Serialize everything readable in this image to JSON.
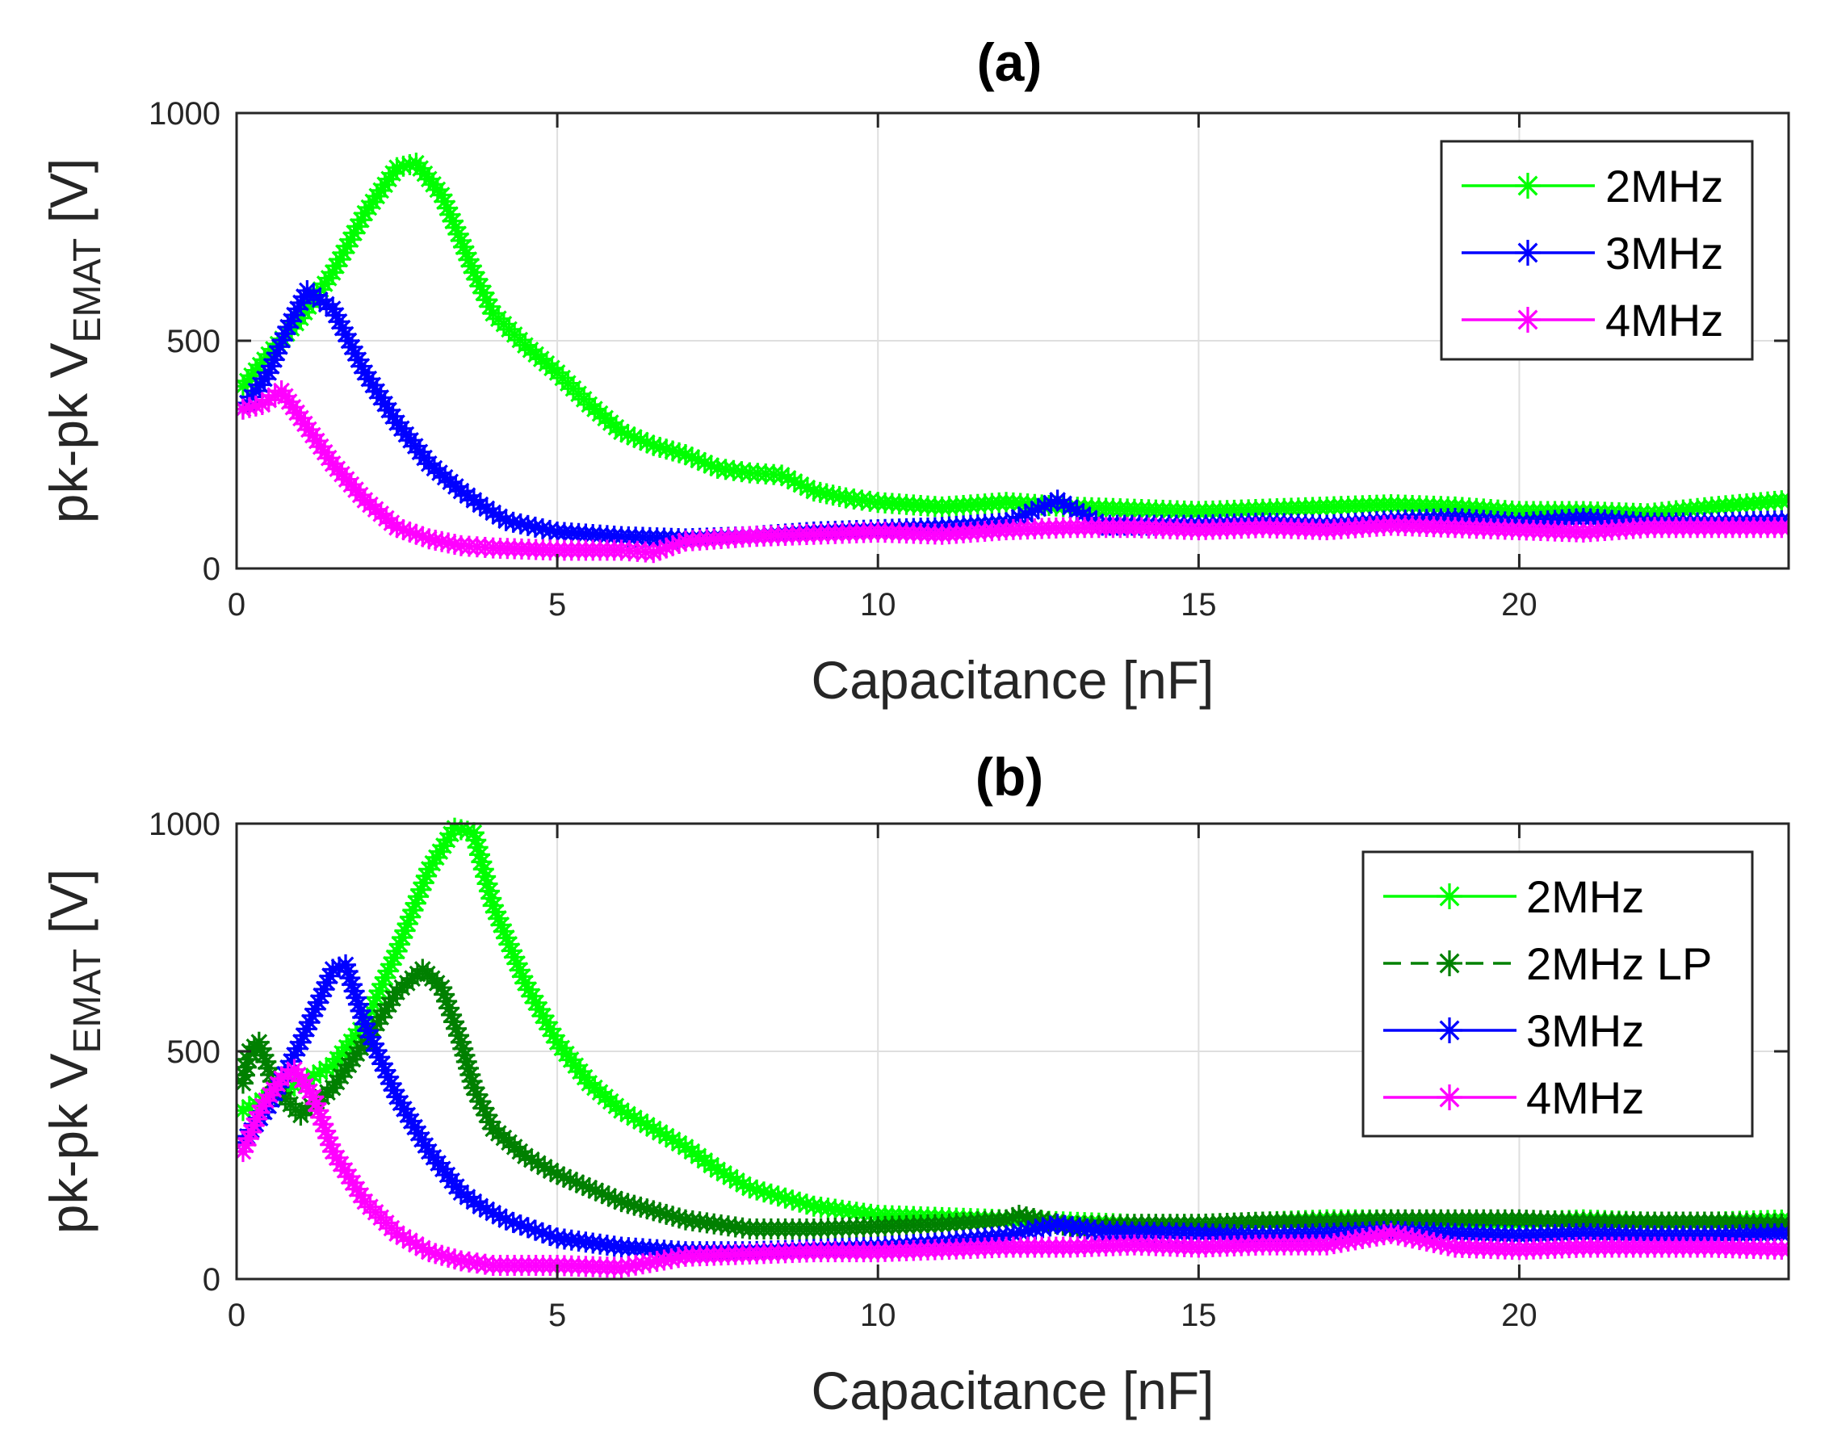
{
  "chart_data": [
    {
      "type": "line",
      "title": "(a)",
      "xlabel": "Capacitance [nF]",
      "ylabel": {
        "main": "pk-pk V",
        "sub": "EMAT",
        "unit": " [V]"
      },
      "xlim": [
        0,
        24.2
      ],
      "ylim": [
        0,
        1000
      ],
      "xticks": [
        "0",
        "5",
        "10",
        "15",
        "20"
      ],
      "yticks": [
        "0",
        "500",
        "1000"
      ],
      "grid": true,
      "legend_position": "top-right",
      "series": [
        {
          "name": "2MHz",
          "color": "#00ff00",
          "style": "solid",
          "marker": "asterisk",
          "x": [
            0.1,
            0.5,
            1,
            1.5,
            2,
            2.5,
            2.8,
            3.2,
            3.5,
            3.7,
            4,
            4.5,
            5,
            5.5,
            6,
            6.5,
            7,
            7.5,
            8,
            8.5,
            9,
            9.5,
            10,
            11,
            12,
            13,
            14,
            15,
            16,
            17,
            18,
            19,
            20,
            21,
            22,
            23,
            24.2
          ],
          "y": [
            400,
            470,
            550,
            650,
            780,
            880,
            890,
            820,
            720,
            650,
            560,
            490,
            430,
            360,
            300,
            270,
            250,
            220,
            210,
            205,
            170,
            155,
            145,
            135,
            145,
            135,
            130,
            125,
            130,
            135,
            140,
            135,
            125,
            125,
            120,
            135,
            150
          ]
        },
        {
          "name": "3MHz",
          "color": "#0000ff",
          "style": "solid",
          "marker": "asterisk",
          "x": [
            0.1,
            0.5,
            0.8,
            1.1,
            1.5,
            2,
            2.5,
            3,
            3.5,
            3.8,
            4.2,
            5,
            6,
            7,
            8,
            9,
            10,
            11,
            12,
            12.8,
            13.5,
            15,
            16,
            17,
            18,
            19,
            20,
            21,
            22,
            23,
            24.2
          ],
          "y": [
            350,
            430,
            530,
            610,
            570,
            430,
            320,
            230,
            170,
            140,
            105,
            80,
            70,
            65,
            70,
            80,
            85,
            90,
            100,
            150,
            95,
            95,
            100,
            95,
            105,
            110,
            100,
            110,
            100,
            100,
            105
          ]
        },
        {
          "name": "4MHz",
          "color": "#ff00ff",
          "style": "solid",
          "marker": "asterisk",
          "x": [
            0.1,
            0.4,
            0.7,
            1,
            1.5,
            2,
            2.5,
            3,
            3.5,
            4,
            5,
            6,
            6.5,
            7,
            8,
            9,
            10,
            11,
            12,
            13,
            14,
            15,
            16,
            17,
            18,
            19,
            20,
            21,
            22,
            23,
            24.2
          ],
          "y": [
            350,
            360,
            390,
            330,
            230,
            150,
            90,
            65,
            50,
            45,
            40,
            40,
            35,
            60,
            70,
            75,
            80,
            75,
            85,
            90,
            90,
            85,
            90,
            85,
            95,
            90,
            85,
            80,
            90,
            90,
            90
          ]
        }
      ]
    },
    {
      "type": "line",
      "title": "(b)",
      "xlabel": "Capacitance [nF]",
      "ylabel": {
        "main": "pk-pk V",
        "sub": "EMAT",
        "unit": " [V]"
      },
      "xlim": [
        0,
        24.2
      ],
      "ylim": [
        0,
        1000
      ],
      "xticks": [
        "0",
        "5",
        "10",
        "15",
        "20"
      ],
      "yticks": [
        "0",
        "500",
        "1000"
      ],
      "grid": true,
      "legend_position": "top-right",
      "series": [
        {
          "name": "2MHz",
          "color": "#00ff00",
          "style": "solid",
          "marker": "asterisk",
          "x": [
            0.1,
            0.5,
            1,
            1.5,
            2,
            2.5,
            3,
            3.4,
            3.7,
            4,
            4.5,
            5,
            5.5,
            6,
            6.5,
            7,
            7.5,
            8,
            9,
            10,
            11,
            12,
            13,
            14,
            15,
            16,
            17,
            18,
            19,
            20,
            21,
            22,
            23,
            24.2
          ],
          "y": [
            370,
            400,
            430,
            470,
            560,
            720,
            900,
            990,
            980,
            820,
            650,
            520,
            430,
            370,
            330,
            290,
            240,
            200,
            160,
            140,
            135,
            130,
            125,
            120,
            120,
            125,
            130,
            130,
            125,
            125,
            130,
            125,
            125,
            130
          ]
        },
        {
          "name": "2MHz LP",
          "color": "#008000",
          "style": "dashed",
          "marker": "asterisk",
          "x": [
            0.1,
            0.2,
            0.35,
            0.6,
            1,
            1.5,
            2,
            2.5,
            2.9,
            3.2,
            3.5,
            3.7,
            4,
            4.5,
            5,
            5.5,
            6,
            6.5,
            7,
            8,
            9,
            10,
            11,
            12,
            12.2,
            13,
            14,
            15,
            16,
            17,
            18,
            19,
            20,
            21,
            22,
            23,
            24.2
          ],
          "y": [
            430,
            500,
            520,
            420,
            360,
            420,
            520,
            630,
            680,
            640,
            520,
            420,
            330,
            270,
            230,
            200,
            170,
            150,
            130,
            110,
            110,
            115,
            120,
            130,
            140,
            115,
            120,
            120,
            125,
            125,
            130,
            130,
            130,
            125,
            125,
            125,
            120
          ]
        },
        {
          "name": "3MHz",
          "color": "#0000ff",
          "style": "solid",
          "marker": "asterisk",
          "x": [
            0.1,
            0.5,
            1,
            1.5,
            1.7,
            2,
            2.5,
            3,
            3.5,
            3.8,
            4.2,
            5,
            6,
            7,
            8,
            9,
            10,
            11,
            12,
            12.8,
            13.5,
            15,
            16,
            17,
            18,
            19,
            20,
            21,
            22,
            23,
            24.2
          ],
          "y": [
            300,
            380,
            520,
            680,
            690,
            560,
            400,
            280,
            190,
            160,
            130,
            90,
            70,
            60,
            60,
            65,
            70,
            80,
            95,
            120,
            105,
            100,
            95,
            100,
            105,
            100,
            95,
            100,
            95,
            95,
            100
          ]
        },
        {
          "name": "4MHz",
          "color": "#ff00ff",
          "style": "solid",
          "marker": "asterisk",
          "x": [
            0.1,
            0.4,
            0.7,
            0.9,
            1.2,
            1.5,
            2,
            2.5,
            3,
            3.5,
            4,
            5,
            6,
            7,
            8,
            9,
            10,
            11,
            12,
            13,
            14,
            15,
            16,
            17,
            18,
            19,
            20,
            21,
            22,
            23,
            24.2
          ],
          "y": [
            280,
            380,
            440,
            460,
            400,
            280,
            170,
            100,
            60,
            40,
            30,
            30,
            25,
            50,
            55,
            60,
            60,
            65,
            70,
            70,
            75,
            70,
            75,
            75,
            100,
            70,
            65,
            70,
            70,
            70,
            65
          ]
        }
      ]
    }
  ]
}
